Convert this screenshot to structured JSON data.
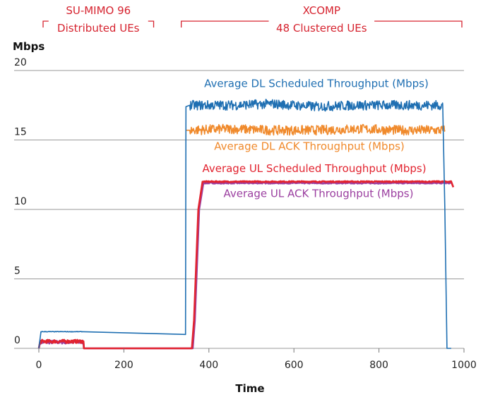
{
  "chart_data": {
    "type": "line",
    "xlabel": "Time",
    "ylabel": "Mbps",
    "xlim": [
      0,
      1000
    ],
    "ylim": [
      0,
      20
    ],
    "xticks": [
      0,
      200,
      400,
      600,
      800,
      1000
    ],
    "yticks": [
      0,
      5,
      10,
      15,
      20
    ],
    "grid": "horizontal",
    "annotations": [
      {
        "line1": "SU-MIMO 96",
        "line2": "Distributed UEs",
        "x_start": 10,
        "x_end": 270
      },
      {
        "line1": "XCOMP",
        "line2": "48 Clustered UEs",
        "x_start": 335,
        "x_end": 995
      }
    ],
    "series": [
      {
        "name": "Average DL Scheduled Throughput (Mbps)",
        "color": "#1f6fb2",
        "x": [
          0,
          5,
          105,
          345,
          346,
          355,
          450,
          550,
          650,
          750,
          850,
          950,
          955,
          960,
          970
        ],
        "y": [
          0,
          1.2,
          1.2,
          1.0,
          17.4,
          17.5,
          17.5,
          17.6,
          17.4,
          17.5,
          17.5,
          17.5,
          10,
          0,
          0
        ]
      },
      {
        "name": "Average DL ACK Throughput (Mbps)",
        "color": "#f08a2c",
        "x": [
          346,
          355,
          450,
          550,
          650,
          750,
          850,
          955
        ],
        "y": [
          15.7,
          15.7,
          15.8,
          15.7,
          15.7,
          15.8,
          15.7,
          15.7
        ]
      },
      {
        "name": "Average UL Scheduled Throughput (Mbps)",
        "color": "#e2232f",
        "x": [
          0,
          3,
          105,
          106,
          360,
          365,
          375,
          385,
          500,
          700,
          900,
          970,
          975
        ],
        "y": [
          0,
          0.5,
          0.5,
          0,
          0,
          2,
          10,
          12.0,
          12.0,
          12.0,
          12.0,
          12.0,
          11.6
        ]
      },
      {
        "name": "Average UL ACK Throughput (Mbps)",
        "color": "#9b3fa0",
        "x": [
          0,
          3,
          105,
          106,
          362,
          367,
          377,
          387,
          500,
          700,
          900,
          970
        ],
        "y": [
          0,
          0.45,
          0.45,
          0,
          0,
          2,
          10,
          11.9,
          11.9,
          11.9,
          11.9,
          11.9
        ]
      }
    ]
  }
}
